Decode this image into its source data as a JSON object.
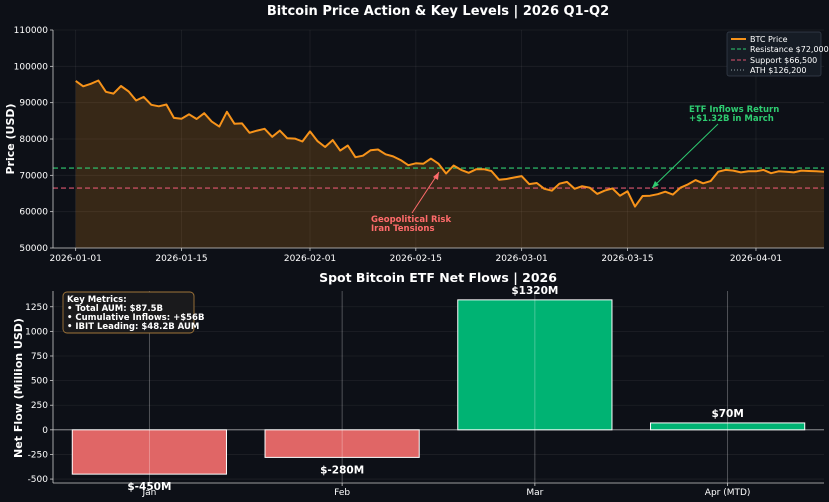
{
  "chart_data": [
    {
      "type": "line",
      "title": "Bitcoin Price Action & Key Levels | 2026 Q1-Q2",
      "xlabel": "",
      "ylabel": "Price (USD)",
      "ylim": [
        50000,
        110000
      ],
      "yticks": [
        50000,
        60000,
        70000,
        80000,
        90000,
        100000,
        110000
      ],
      "xlim_days": [
        -3,
        99
      ],
      "xticks": [
        {
          "label": "2026-01-01",
          "day": 0
        },
        {
          "label": "2026-01-15",
          "day": 14
        },
        {
          "label": "2026-02-01",
          "day": 31
        },
        {
          "label": "2026-02-15",
          "day": 45
        },
        {
          "label": "2026-03-01",
          "day": 59
        },
        {
          "label": "2026-03-15",
          "day": 73
        },
        {
          "label": "2026-04-01",
          "day": 90
        }
      ],
      "series": [
        {
          "name": "BTC Price",
          "color": "#f7931a",
          "start_date": "2026-01-01",
          "values": [
            96000,
            94500,
            95200,
            96100,
            93000,
            92500,
            94600,
            93100,
            90600,
            91600,
            89400,
            89000,
            89500,
            85800,
            85600,
            86800,
            85500,
            87100,
            84800,
            83400,
            87500,
            84200,
            84300,
            81700,
            82300,
            82800,
            80600,
            82300,
            80200,
            80100,
            79300,
            82100,
            79400,
            77800,
            79700,
            76800,
            78200,
            75000,
            75400,
            76900,
            77100,
            75800,
            75200,
            74200,
            72800,
            73300,
            73200,
            74600,
            73200,
            70500,
            72700,
            71500,
            70700,
            71700,
            71700,
            71200,
            68800,
            69000,
            69400,
            69800,
            67600,
            67900,
            66300,
            65800,
            67700,
            68200,
            66300,
            67000,
            66600,
            64900,
            65800,
            66400,
            64400,
            65600,
            61400,
            64300,
            64400,
            64800,
            65500,
            64700,
            66600,
            67500,
            68700,
            67800,
            68400,
            71000,
            71500,
            71300,
            70800,
            71100,
            71100,
            71500,
            70600,
            71100,
            71000,
            70800,
            71300,
            71200,
            71100,
            71000
          ]
        }
      ],
      "reference_lines": [
        {
          "name": "Resistance $72,000",
          "value": 72000,
          "color": "#2ecc71",
          "style": "dashed"
        },
        {
          "name": "Support $66,500",
          "value": 66500,
          "color": "#e0556f",
          "style": "dashed"
        },
        {
          "name": "ATH $126,200",
          "value": 126200,
          "color": "#95a5a6",
          "style": "dotted"
        }
      ],
      "legend_position": "top-right",
      "annotations": [
        {
          "lines": [
            "ETF Inflows Return",
            "+$1.32B in March"
          ],
          "color": "#2ecc71",
          "point_day": 80,
          "point_value": 66500
        },
        {
          "lines": [
            "Geopolitical Risk",
            "Iran Tensions"
          ],
          "color": "#ff6b6b",
          "point_day": 50,
          "point_value": 73000
        }
      ]
    },
    {
      "type": "bar",
      "title": "Spot Bitcoin ETF Net Flows | 2026",
      "xlabel": "",
      "ylabel": "Net Flow (Million USD)",
      "categories": [
        "Jan",
        "Feb",
        "Mar",
        "Apr (MTD)"
      ],
      "values": [
        -450,
        -280,
        1320,
        70
      ],
      "value_labels": [
        "$-450M",
        "$-280M",
        "$1320M",
        "$70M"
      ],
      "positive_color": "#00b373",
      "negative_color": "#e06666",
      "ylim": [
        -540,
        1410
      ],
      "yticks": [
        -500,
        -250,
        0,
        250,
        500,
        750,
        1000,
        1250
      ],
      "key_metrics": {
        "title": "Key Metrics:",
        "lines": [
          "• Total AUM: $87.5B",
          "• Cumulative Inflows: +$56B",
          "• IBIT Leading: $48.2B AUM"
        ]
      }
    }
  ]
}
